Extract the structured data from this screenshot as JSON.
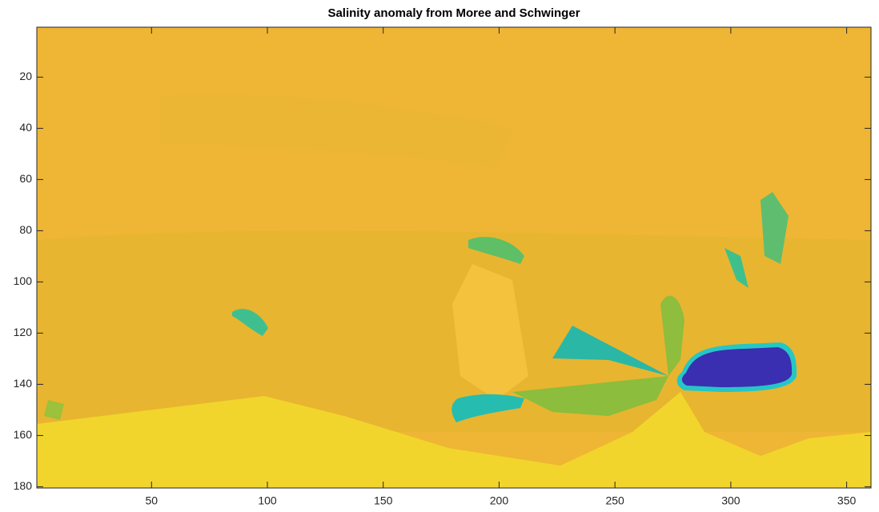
{
  "chart_data": {
    "type": "heatmap",
    "title": "Salinity anomaly from Moree and Schwinger",
    "xlim": [
      0.5,
      360.5
    ],
    "xticks": [
      50,
      100,
      150,
      200,
      250,
      300,
      350
    ],
    "ylim": [
      180.5,
      0.5
    ],
    "yticks": [
      20,
      40,
      60,
      80,
      100,
      120,
      140,
      160,
      180
    ]
  }
}
